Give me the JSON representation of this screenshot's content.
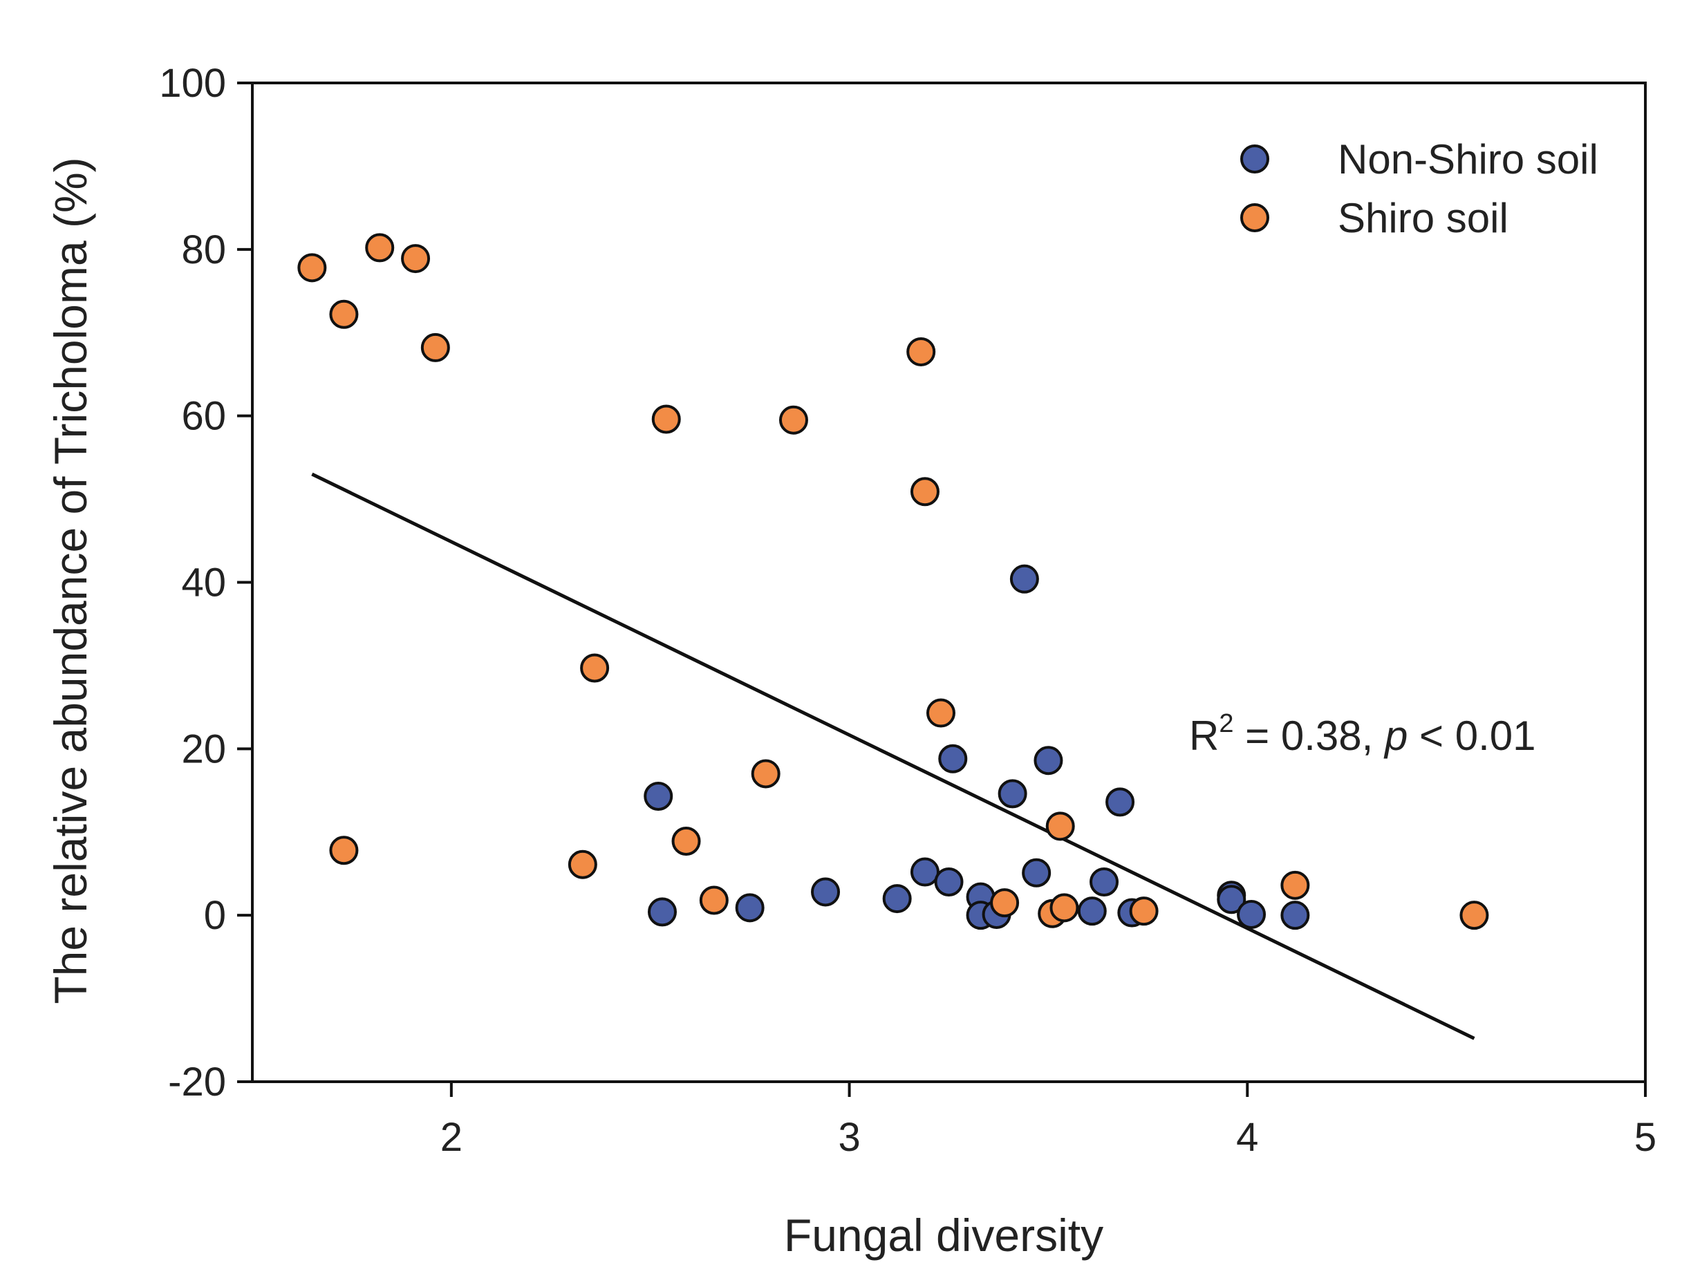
{
  "chart_data": {
    "type": "scatter",
    "title": "",
    "xlabel": "Fungal diversity",
    "ylabel": "The relative abundance of Tricholoma (%)",
    "xlim": [
      1.5,
      5
    ],
    "ylim": [
      -20,
      100
    ],
    "xticks": [
      2,
      3,
      4,
      5
    ],
    "yticks": [
      -20,
      0,
      20,
      40,
      60,
      80,
      100
    ],
    "grid": false,
    "legend_position": "top-right",
    "series": [
      {
        "name": "Non-Shiro soil",
        "color": "#4a5fa6",
        "points": [
          [
            2.52,
            14.3
          ],
          [
            2.53,
            0.4
          ],
          [
            2.75,
            0.9
          ],
          [
            2.94,
            2.8
          ],
          [
            3.12,
            2.0
          ],
          [
            3.19,
            5.2
          ],
          [
            3.26,
            18.8
          ],
          [
            3.25,
            4.0
          ],
          [
            3.33,
            2.2
          ],
          [
            3.33,
            0.0
          ],
          [
            3.37,
            0.1
          ],
          [
            3.41,
            14.6
          ],
          [
            3.44,
            40.4
          ],
          [
            3.47,
            5.1
          ],
          [
            3.5,
            18.6
          ],
          [
            3.61,
            0.5
          ],
          [
            3.64,
            4.0
          ],
          [
            3.68,
            13.6
          ],
          [
            3.71,
            0.3
          ],
          [
            3.96,
            2.4
          ],
          [
            3.96,
            1.9
          ],
          [
            4.01,
            0.1
          ],
          [
            4.12,
            0.0
          ]
        ]
      },
      {
        "name": "Shiro soil",
        "color": "#f28c46",
        "points": [
          [
            1.65,
            77.8
          ],
          [
            1.73,
            72.2
          ],
          [
            1.73,
            7.8
          ],
          [
            1.82,
            80.2
          ],
          [
            1.91,
            78.9
          ],
          [
            1.96,
            68.2
          ],
          [
            2.33,
            6.1
          ],
          [
            2.36,
            29.7
          ],
          [
            2.54,
            59.6
          ],
          [
            2.59,
            8.9
          ],
          [
            2.66,
            1.8
          ],
          [
            2.79,
            17.0
          ],
          [
            2.86,
            59.5
          ],
          [
            3.18,
            67.7
          ],
          [
            3.19,
            50.9
          ],
          [
            3.23,
            24.3
          ],
          [
            3.39,
            1.5
          ],
          [
            3.51,
            0.2
          ],
          [
            3.53,
            10.7
          ],
          [
            3.54,
            0.9
          ],
          [
            3.74,
            0.5
          ],
          [
            4.12,
            3.6
          ],
          [
            4.57,
            0.0
          ]
        ]
      }
    ],
    "regression": {
      "x": [
        1.65,
        4.57
      ],
      "y": [
        53.0,
        -14.8
      ]
    },
    "annotation": {
      "r_label": "R",
      "r_sup": "2",
      "r_rest": " = 0.38, ",
      "p_italic": "p",
      "p_rest": " < 0.01"
    }
  }
}
